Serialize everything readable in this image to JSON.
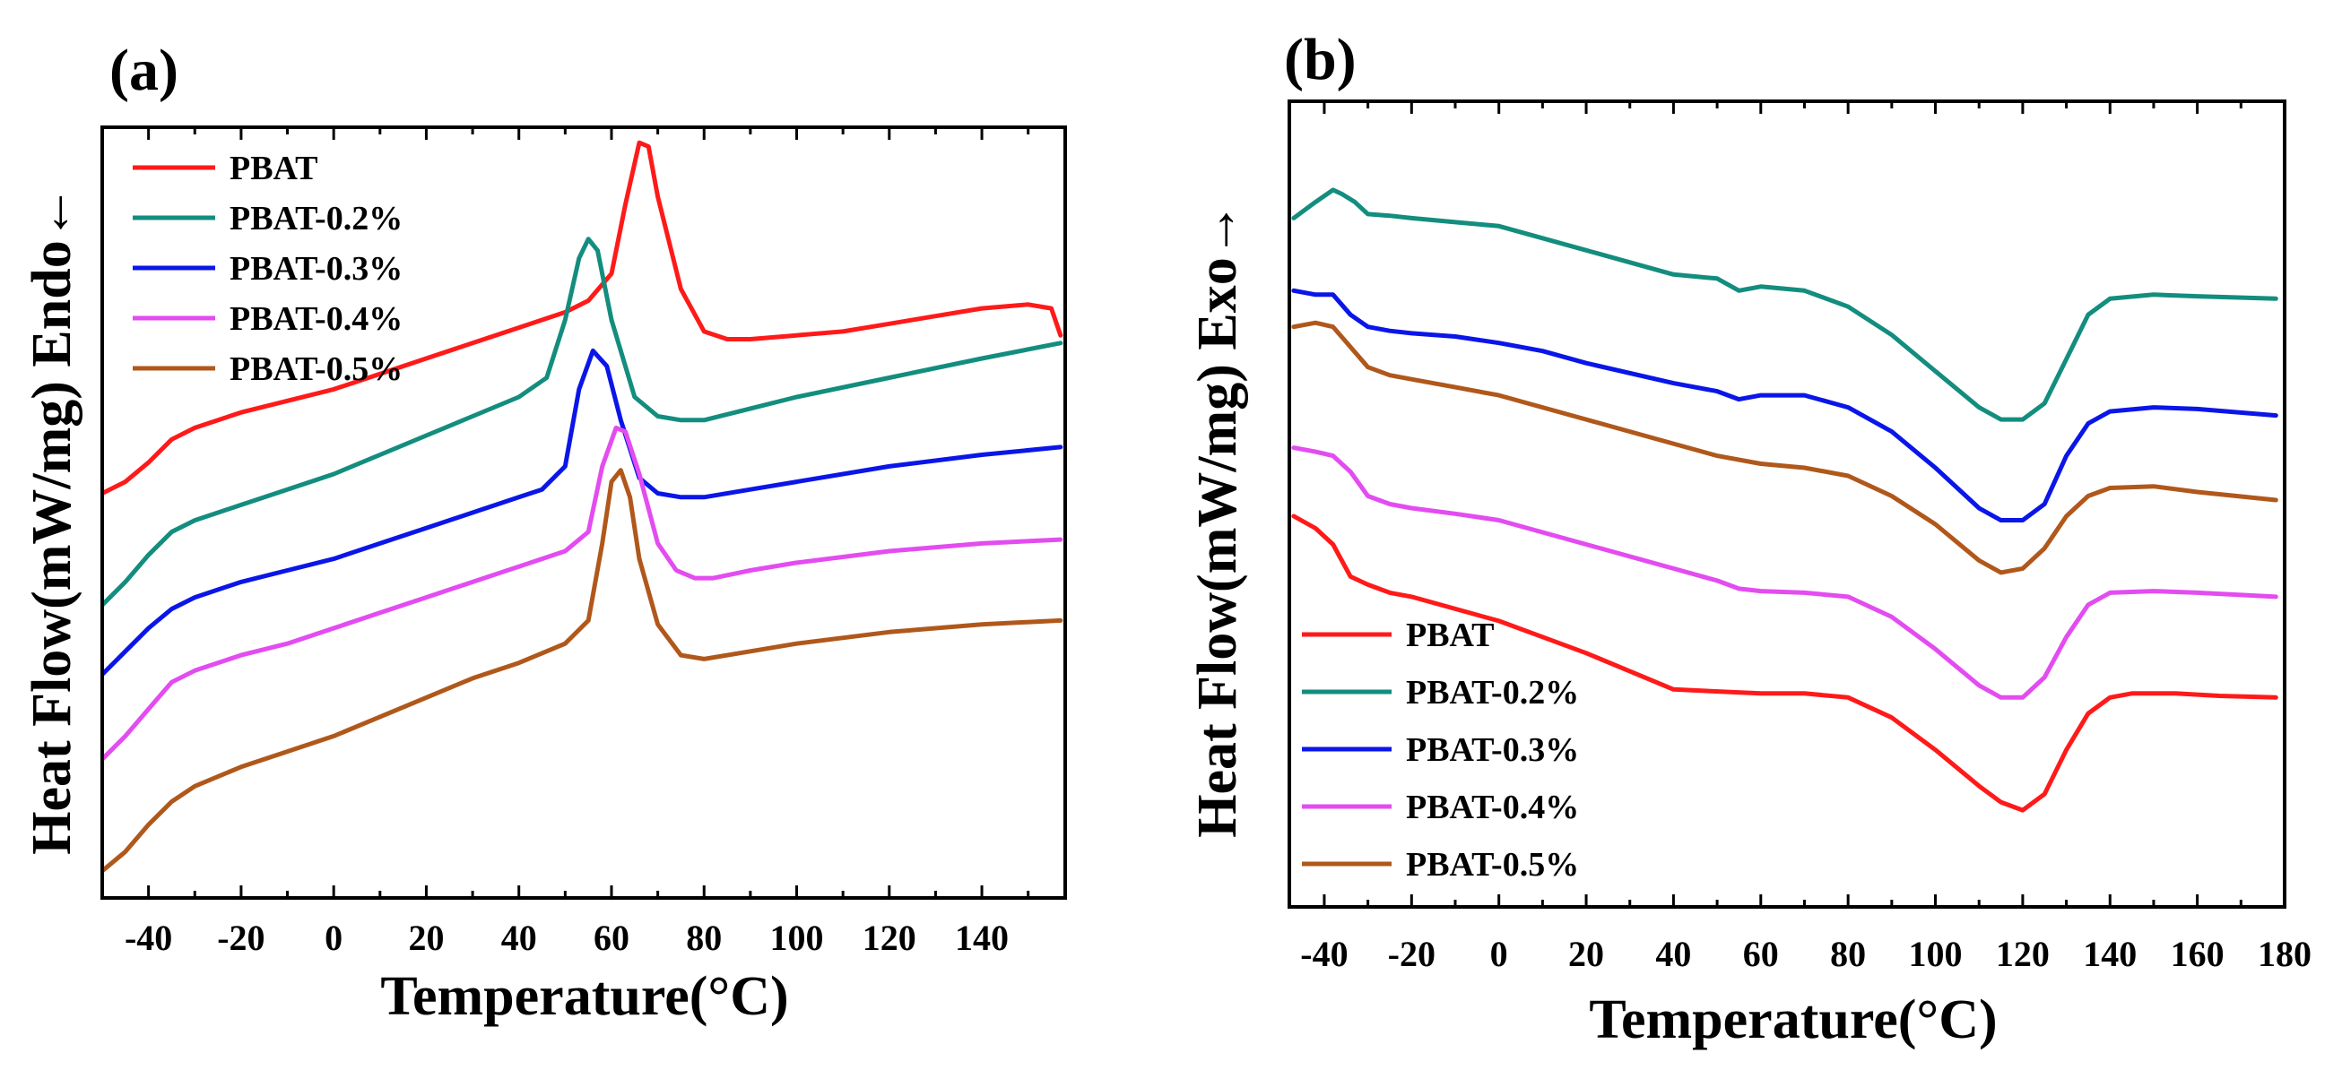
{
  "figure": {
    "description_panels": [
      "a",
      "b"
    ]
  },
  "chart_data": [
    {
      "panel_label": "(a)",
      "type": "line",
      "title": "",
      "xlabel": "Temperature(°C)",
      "ylabel": "Heat Flow(mW/mg) Endo←",
      "xlim": [
        -50,
        158
      ],
      "ylim": [
        0,
        10
      ],
      "xticks": [
        -40,
        -20,
        0,
        20,
        40,
        60,
        80,
        100,
        120,
        140
      ],
      "xtick_labels": [
        "-40",
        "-20",
        "0",
        "20",
        "40",
        "60",
        "80",
        "100",
        "120",
        "140"
      ],
      "yticks_shown": false,
      "legend_position": "top-left",
      "legend": [
        "PBAT",
        "PBAT-0.2%",
        "PBAT-0.3%",
        "PBAT-0.4%",
        "PBAT-0.5%"
      ],
      "series": [
        {
          "name": "PBAT",
          "color": "#ff1a1a",
          "x": [
            -50,
            -45,
            -40,
            -35,
            -30,
            -20,
            -10,
            0,
            10,
            20,
            30,
            40,
            50,
            55,
            60,
            63,
            66,
            68,
            70,
            75,
            80,
            85,
            90,
            100,
            110,
            120,
            130,
            140,
            150,
            155,
            157
          ],
          "y": [
            5.25,
            5.4,
            5.65,
            5.95,
            6.1,
            6.3,
            6.45,
            6.6,
            6.8,
            7.0,
            7.2,
            7.4,
            7.6,
            7.75,
            8.1,
            9.0,
            9.8,
            9.75,
            9.1,
            7.9,
            7.35,
            7.25,
            7.25,
            7.3,
            7.35,
            7.45,
            7.55,
            7.65,
            7.7,
            7.65,
            7.3
          ]
        },
        {
          "name": "PBAT-0.2%",
          "color": "#138d7e",
          "x": [
            -50,
            -45,
            -40,
            -35,
            -30,
            -20,
            -10,
            0,
            10,
            20,
            30,
            40,
            46,
            50,
            53,
            55,
            57,
            60,
            65,
            70,
            75,
            80,
            90,
            100,
            120,
            140,
            157
          ],
          "y": [
            3.8,
            4.1,
            4.45,
            4.75,
            4.9,
            5.1,
            5.3,
            5.5,
            5.75,
            6.0,
            6.25,
            6.5,
            6.75,
            7.5,
            8.3,
            8.55,
            8.4,
            7.5,
            6.5,
            6.25,
            6.2,
            6.2,
            6.35,
            6.5,
            6.75,
            7.0,
            7.2
          ]
        },
        {
          "name": "PBAT-0.3%",
          "color": "#0a16e8",
          "x": [
            -50,
            -45,
            -40,
            -35,
            -30,
            -20,
            -10,
            0,
            10,
            20,
            30,
            40,
            45,
            50,
            53,
            56,
            59,
            62,
            66,
            70,
            75,
            80,
            90,
            100,
            120,
            140,
            157
          ],
          "y": [
            2.9,
            3.2,
            3.5,
            3.75,
            3.9,
            4.1,
            4.25,
            4.4,
            4.6,
            4.8,
            5.0,
            5.2,
            5.3,
            5.6,
            6.6,
            7.1,
            6.9,
            6.2,
            5.45,
            5.25,
            5.2,
            5.2,
            5.3,
            5.4,
            5.6,
            5.75,
            5.85
          ]
        },
        {
          "name": "PBAT-0.4%",
          "color": "#e34cf0",
          "x": [
            -50,
            -45,
            -40,
            -35,
            -30,
            -20,
            -10,
            0,
            10,
            20,
            30,
            40,
            50,
            55,
            58,
            61,
            63,
            66,
            70,
            74,
            78,
            82,
            90,
            100,
            120,
            140,
            157
          ],
          "y": [
            1.8,
            2.1,
            2.45,
            2.8,
            2.95,
            3.15,
            3.3,
            3.5,
            3.7,
            3.9,
            4.1,
            4.3,
            4.5,
            4.75,
            5.6,
            6.1,
            6.05,
            5.5,
            4.6,
            4.25,
            4.15,
            4.15,
            4.25,
            4.35,
            4.5,
            4.6,
            4.65
          ]
        },
        {
          "name": "PBAT-0.5%",
          "color": "#b0581b",
          "x": [
            -50,
            -45,
            -40,
            -35,
            -30,
            -20,
            -10,
            0,
            10,
            20,
            30,
            40,
            50,
            55,
            58,
            60,
            62,
            64,
            66,
            70,
            75,
            80,
            90,
            100,
            120,
            140,
            157
          ],
          "y": [
            0.35,
            0.6,
            0.95,
            1.25,
            1.45,
            1.7,
            1.9,
            2.1,
            2.35,
            2.6,
            2.85,
            3.05,
            3.3,
            3.6,
            4.6,
            5.4,
            5.55,
            5.2,
            4.4,
            3.55,
            3.15,
            3.1,
            3.2,
            3.3,
            3.45,
            3.55,
            3.6
          ]
        }
      ]
    },
    {
      "panel_label": "(b)",
      "type": "line",
      "title": "",
      "xlabel": "Temperature(°C)",
      "ylabel": "Heat Flow(mW/mg) Exo→",
      "xlim": [
        -48,
        180
      ],
      "ylim": [
        0,
        10
      ],
      "xticks": [
        -40,
        -20,
        0,
        20,
        40,
        60,
        80,
        100,
        120,
        140,
        160,
        180
      ],
      "xtick_labels": [
        "-40",
        "-20",
        "0",
        "20",
        "40",
        "60",
        "80",
        "100",
        "120",
        "140",
        "160",
        "180"
      ],
      "yticks_shown": false,
      "legend_position": "bottom-left",
      "legend": [
        "PBAT",
        "PBAT-0.2%",
        "PBAT-0.3%",
        "PBAT-0.4%",
        "PBAT-0.5%"
      ],
      "series": [
        {
          "name": "PBAT",
          "color": "#ff1a1a",
          "x": [
            -47,
            -42,
            -38,
            -34,
            -30,
            -25,
            -20,
            -10,
            0,
            10,
            20,
            40,
            60,
            70,
            80,
            90,
            100,
            110,
            115,
            120,
            125,
            130,
            135,
            140,
            145,
            155,
            165,
            178
          ],
          "y": [
            4.85,
            4.7,
            4.5,
            4.1,
            4.0,
            3.9,
            3.85,
            3.7,
            3.55,
            3.35,
            3.15,
            2.7,
            2.65,
            2.65,
            2.6,
            2.35,
            1.95,
            1.5,
            1.3,
            1.2,
            1.4,
            1.95,
            2.4,
            2.6,
            2.65,
            2.65,
            2.62,
            2.6
          ]
        },
        {
          "name": "PBAT-0.2%",
          "color": "#138d7e",
          "x": [
            -47,
            -42,
            -38,
            -36,
            -33,
            -30,
            -25,
            -20,
            -10,
            0,
            10,
            20,
            40,
            50,
            55,
            60,
            70,
            80,
            90,
            100,
            110,
            115,
            120,
            125,
            130,
            135,
            140,
            150,
            160,
            178
          ],
          "y": [
            8.55,
            8.75,
            8.9,
            8.85,
            8.75,
            8.6,
            8.58,
            8.55,
            8.5,
            8.45,
            8.3,
            8.15,
            7.85,
            7.8,
            7.65,
            7.7,
            7.65,
            7.45,
            7.1,
            6.65,
            6.2,
            6.05,
            6.05,
            6.25,
            6.8,
            7.35,
            7.55,
            7.6,
            7.58,
            7.55
          ]
        },
        {
          "name": "PBAT-0.3%",
          "color": "#0a16e8",
          "x": [
            -47,
            -42,
            -38,
            -34,
            -30,
            -25,
            -20,
            -10,
            0,
            10,
            20,
            40,
            50,
            55,
            60,
            70,
            80,
            90,
            100,
            110,
            115,
            120,
            125,
            130,
            135,
            140,
            150,
            160,
            178
          ],
          "y": [
            7.65,
            7.6,
            7.6,
            7.35,
            7.2,
            7.15,
            7.12,
            7.08,
            7.0,
            6.9,
            6.75,
            6.5,
            6.4,
            6.3,
            6.35,
            6.35,
            6.2,
            5.9,
            5.45,
            4.95,
            4.8,
            4.8,
            5.0,
            5.6,
            6.0,
            6.15,
            6.2,
            6.18,
            6.1
          ]
        },
        {
          "name": "PBAT-0.4%",
          "color": "#e34cf0",
          "x": [
            -47,
            -42,
            -38,
            -34,
            -30,
            -25,
            -20,
            -10,
            0,
            10,
            20,
            40,
            50,
            55,
            60,
            70,
            80,
            90,
            100,
            110,
            115,
            120,
            125,
            130,
            135,
            140,
            150,
            160,
            178
          ],
          "y": [
            5.7,
            5.65,
            5.6,
            5.4,
            5.1,
            5.0,
            4.95,
            4.88,
            4.8,
            4.65,
            4.5,
            4.2,
            4.05,
            3.95,
            3.92,
            3.9,
            3.85,
            3.6,
            3.2,
            2.75,
            2.6,
            2.6,
            2.85,
            3.35,
            3.75,
            3.9,
            3.92,
            3.9,
            3.85
          ]
        },
        {
          "name": "PBAT-0.5%",
          "color": "#b0581b",
          "x": [
            -47,
            -42,
            -38,
            -34,
            -30,
            -25,
            -20,
            -10,
            0,
            10,
            20,
            40,
            50,
            60,
            70,
            80,
            90,
            100,
            110,
            115,
            120,
            125,
            130,
            135,
            140,
            150,
            160,
            178
          ],
          "y": [
            7.2,
            7.25,
            7.2,
            6.95,
            6.7,
            6.6,
            6.55,
            6.45,
            6.35,
            6.2,
            6.05,
            5.75,
            5.6,
            5.5,
            5.45,
            5.35,
            5.1,
            4.75,
            4.3,
            4.15,
            4.2,
            4.45,
            4.85,
            5.1,
            5.2,
            5.22,
            5.15,
            5.05
          ]
        }
      ]
    }
  ]
}
